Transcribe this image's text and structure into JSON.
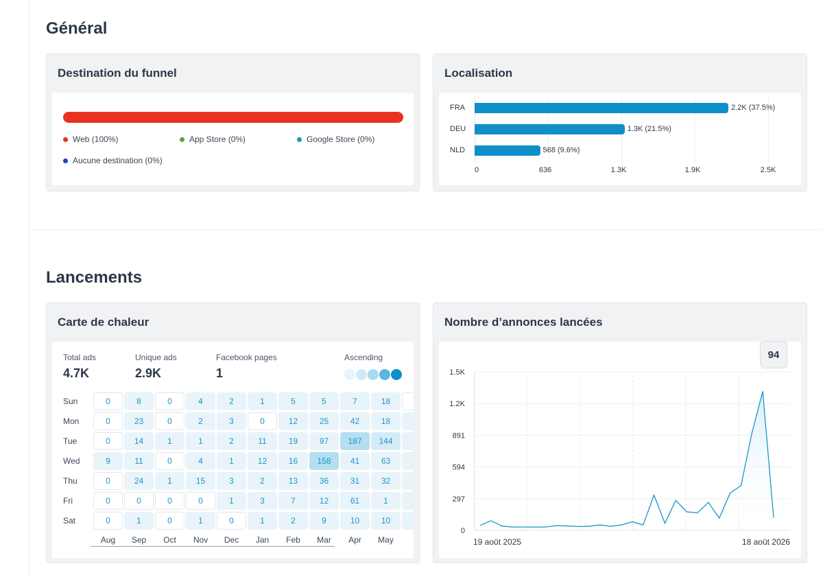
{
  "sections": {
    "general": "Général",
    "launches": "Lancements"
  },
  "funnel": {
    "title": "Destination du funnel",
    "bar_color": "#e8321f",
    "legend": [
      {
        "label": "Web (100%)",
        "color": "#e8321f"
      },
      {
        "label": "App Store (0%)",
        "color": "#5aa832"
      },
      {
        "label": "Google Store (0%)",
        "color": "#1a96c8"
      },
      {
        "label": "Aucune destination (0%)",
        "color": "#1f3fcf"
      }
    ]
  },
  "localisation": {
    "title": "Localisation",
    "bar_color": "#0e8fc9",
    "countries": [
      {
        "code": "FRA",
        "value": 2200,
        "label": "2.2K (37.5%)"
      },
      {
        "code": "DEU",
        "value": 1300,
        "label": "1.3K (21.5%)"
      },
      {
        "code": "NLD",
        "value": 568,
        "label": "568 (9.6%)"
      }
    ],
    "axis_ticks": [
      "0",
      "636",
      "1.3K",
      "1.9K",
      "2.5K"
    ],
    "axis_max": 2544
  },
  "heatmap": {
    "title": "Carte de chaleur",
    "stats": [
      {
        "label": "Total ads",
        "value": "4.7K"
      },
      {
        "label": "Unique ads",
        "value": "2.9K"
      },
      {
        "label": "Facebook pages",
        "value": "1"
      }
    ],
    "legend_label": "Ascending",
    "days": [
      "Sun",
      "Mon",
      "Tue",
      "Wed",
      "Thu",
      "Fri",
      "Sat"
    ],
    "months": [
      "Aug",
      "Sep",
      "Oct",
      "Nov",
      "Dec",
      "Jan",
      "Feb",
      "Mar",
      "Apr",
      "May"
    ],
    "values": [
      [
        0,
        8,
        0,
        4,
        2,
        1,
        5,
        5,
        7,
        18
      ],
      [
        0,
        23,
        0,
        2,
        3,
        0,
        12,
        25,
        42,
        18
      ],
      [
        0,
        14,
        1,
        1,
        2,
        11,
        19,
        97,
        187,
        144
      ],
      [
        9,
        11,
        0,
        4,
        1,
        12,
        16,
        158,
        41,
        63
      ],
      [
        0,
        24,
        1,
        15,
        3,
        2,
        13,
        36,
        31,
        32
      ],
      [
        0,
        0,
        0,
        0,
        1,
        3,
        7,
        12,
        61,
        1
      ],
      [
        0,
        1,
        0,
        1,
        0,
        1,
        2,
        9,
        10,
        10
      ]
    ]
  },
  "launched_ads": {
    "title": "Nombre d’annonces lancées",
    "badge": "94",
    "chart_data": {
      "type": "area",
      "x_start_label": "19 août 2025",
      "x_end_label": "18 août 2026",
      "y_ticks": [
        "1.5K",
        "1.2K",
        "891",
        "594",
        "297",
        "0"
      ],
      "ylim": [
        0,
        1485
      ],
      "values": [
        20,
        65,
        15,
        5,
        5,
        5,
        5,
        18,
        15,
        10,
        12,
        25,
        12,
        25,
        55,
        25,
        310,
        40,
        260,
        150,
        140,
        240,
        90,
        330,
        400,
        900,
        1300,
        94
      ],
      "color": "#1a96c8"
    }
  }
}
